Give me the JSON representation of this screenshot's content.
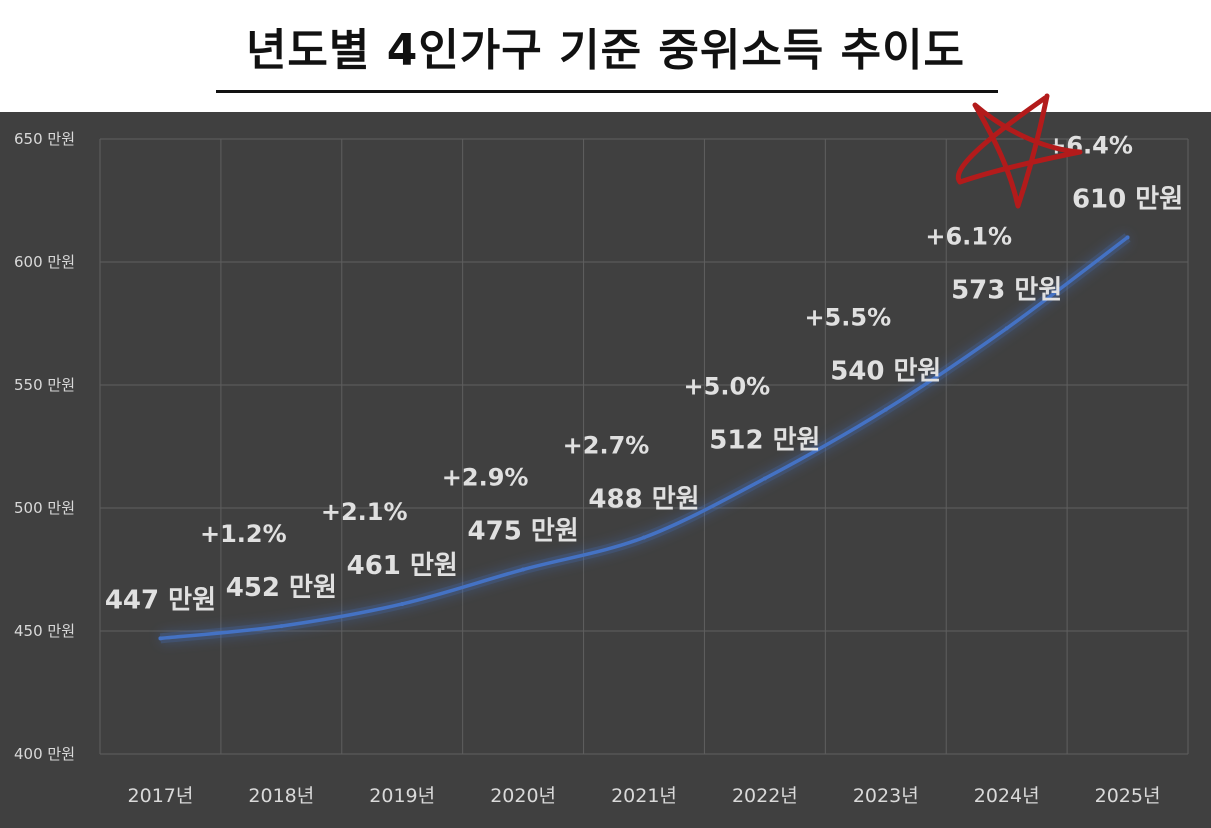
{
  "title": "년도별 4인가구 기준 중위소득 추이도",
  "chart_data": {
    "type": "line",
    "title": "년도별 4인가구 기준 중위소득 추이도",
    "categories": [
      "2017년",
      "2018년",
      "2019년",
      "2020년",
      "2021년",
      "2022년",
      "2023년",
      "2024년",
      "2025년"
    ],
    "values": [
      447,
      452,
      461,
      475,
      488,
      512,
      540,
      573,
      610
    ],
    "value_labels": [
      "447 만원",
      "452 만원",
      "461 만원",
      "475 만원",
      "488 만원",
      "512 만원",
      "540 만원",
      "573 만원",
      "610 만원"
    ],
    "growth_labels": [
      "",
      "+1.2%",
      "+2.1%",
      "+2.9%",
      "+2.7%",
      "+5.0%",
      "+5.5%",
      "+6.1%",
      "+6.4%"
    ],
    "y_ticks": [
      400,
      450,
      500,
      550,
      600,
      650
    ],
    "y_tick_labels": [
      "400 만원",
      "450 만원",
      "500 만원",
      "550 만원",
      "600 만원",
      "650 만원"
    ],
    "ylim": [
      400,
      650
    ],
    "xlabel": "",
    "ylabel": "",
    "grid": true,
    "line_color": "#4472c4",
    "background_color": "#404040",
    "annotation": "red-star-icon"
  }
}
